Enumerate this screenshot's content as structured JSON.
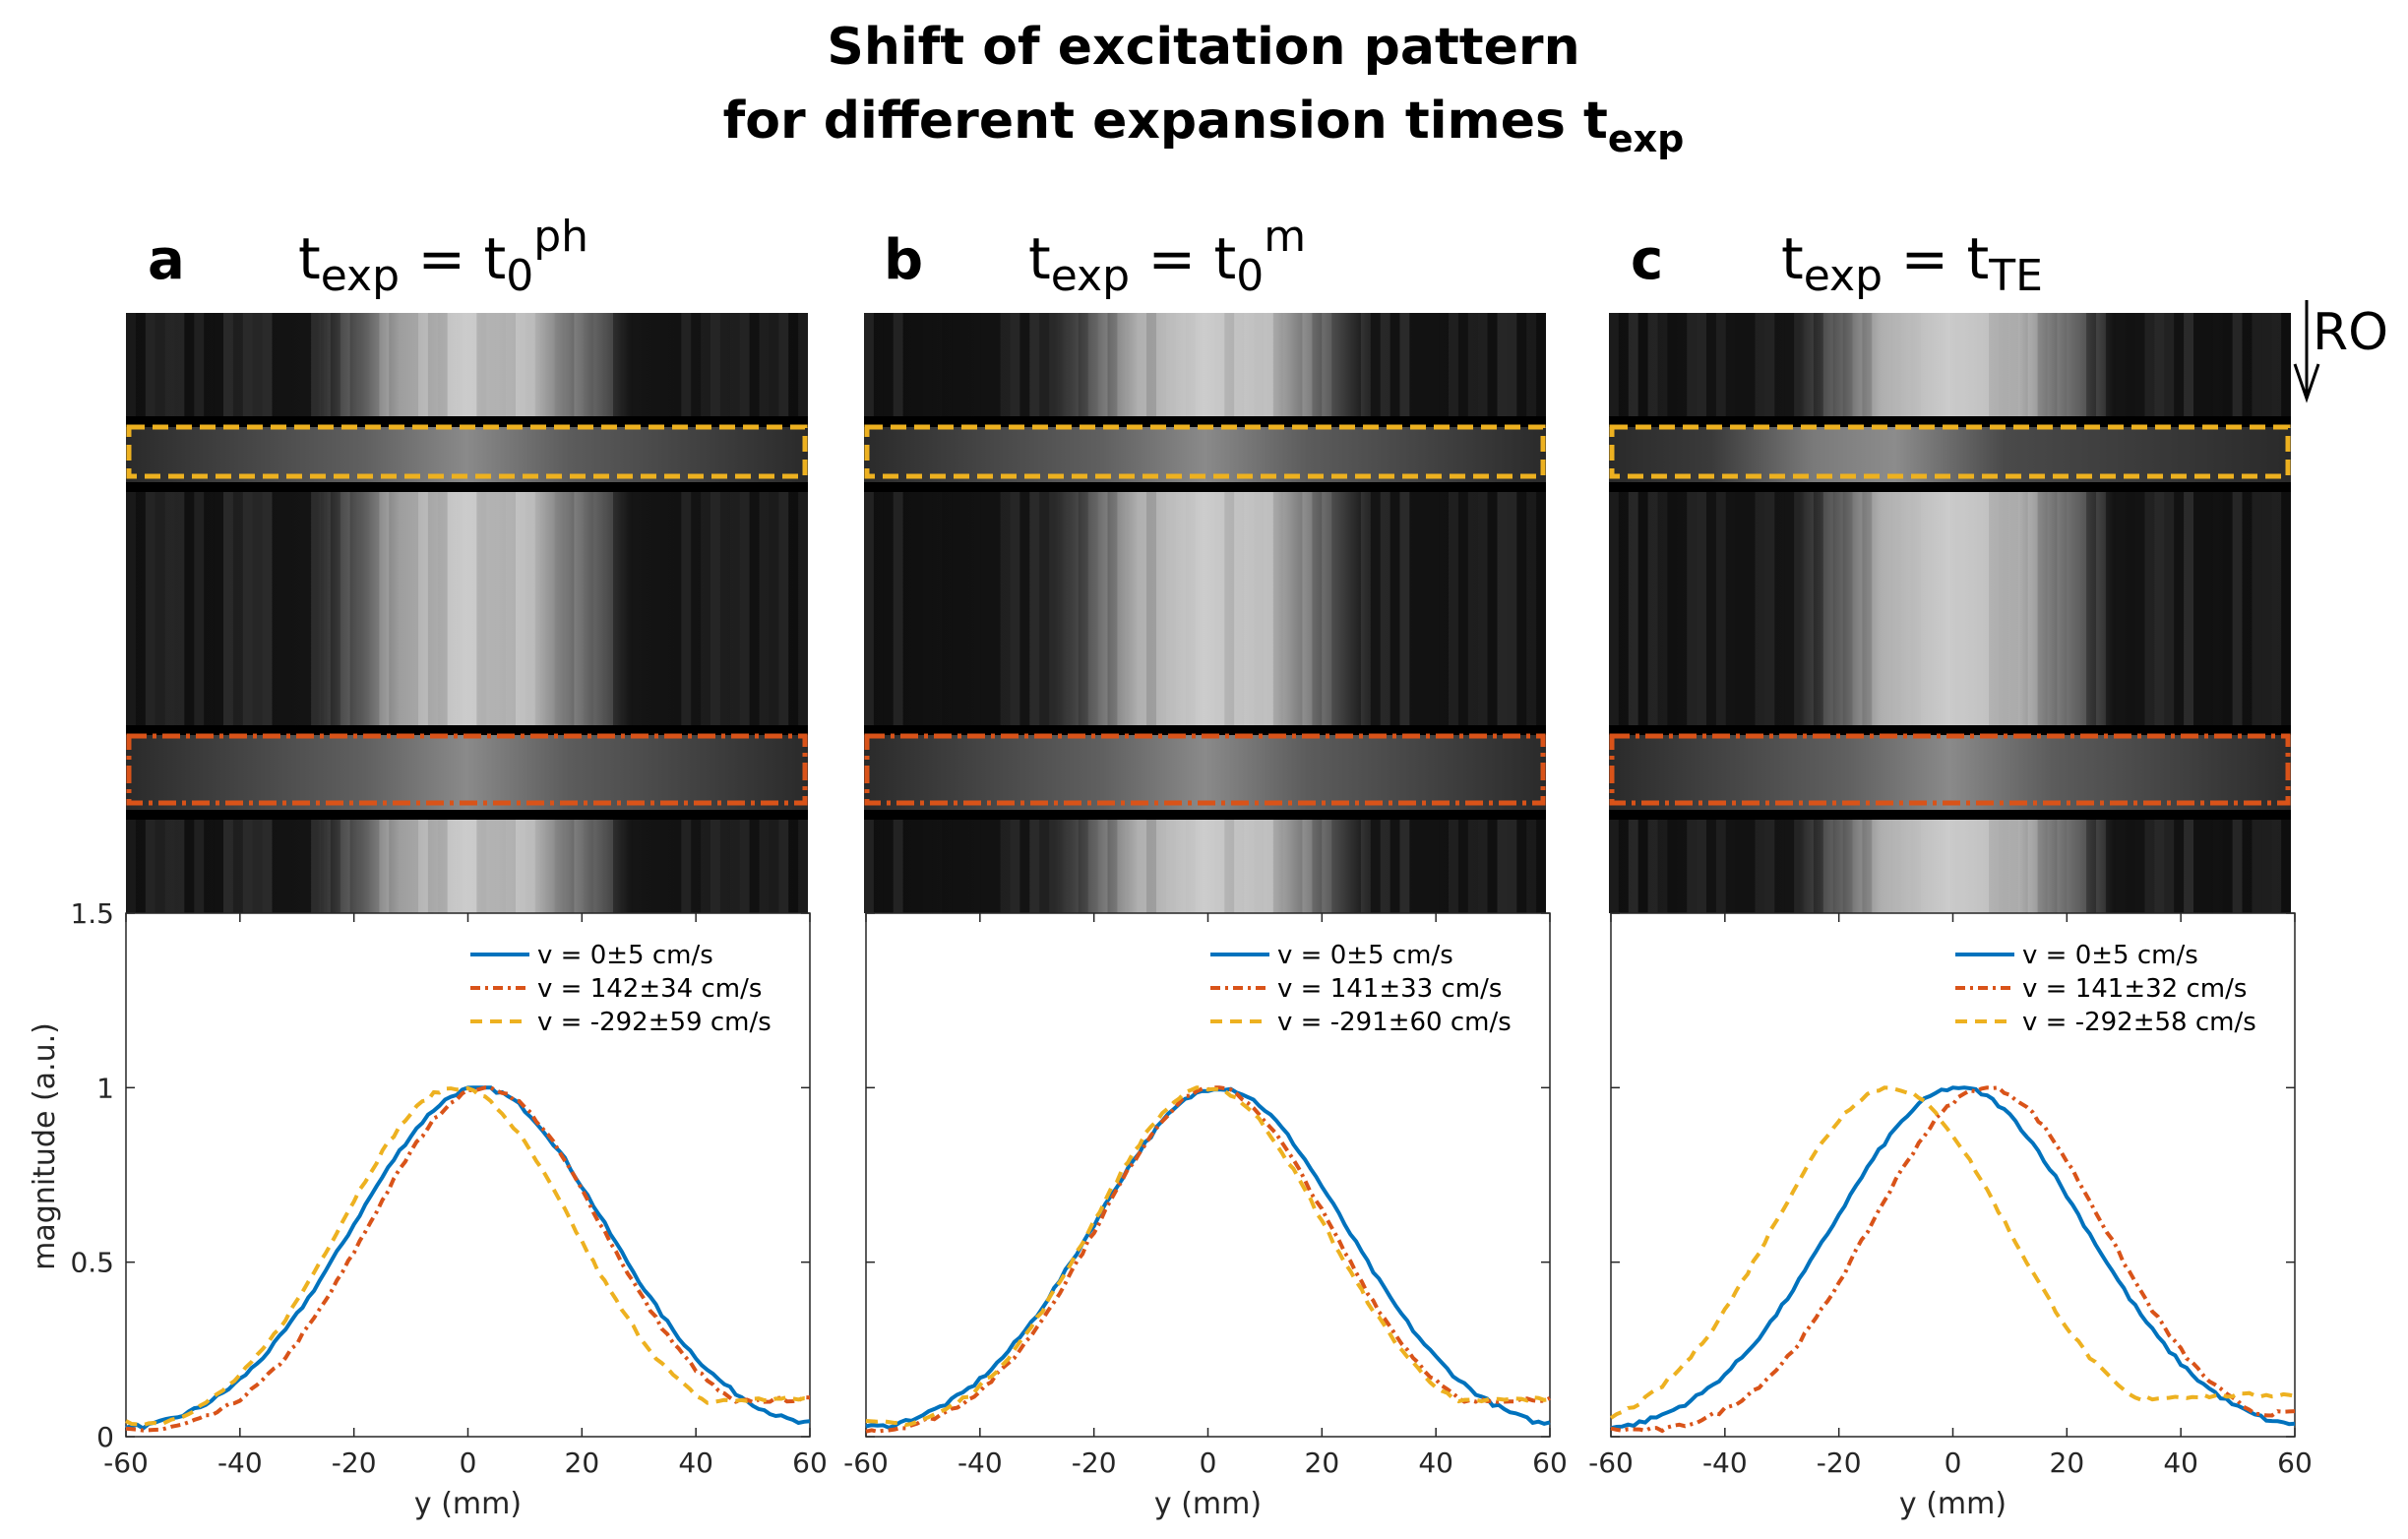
{
  "figure": {
    "title_line1": "Shift of excitation pattern",
    "title_line2": "for different expansion times t",
    "title_sub": "exp",
    "ro_label": "RO",
    "ylabel": "magnitude (a.u.)",
    "xlabel": "y (mm)"
  },
  "colors": {
    "blue": "#0072BD",
    "red": "#D95319",
    "yellow": "#EDB120",
    "axis": "#262626"
  },
  "panels": [
    {
      "letter": "a",
      "header": {
        "t": "t",
        "exp": "exp",
        "eq": " = t",
        "sub": "0",
        "sup": "ph"
      }
    },
    {
      "letter": "b",
      "header": {
        "t": "t",
        "exp": "exp",
        "eq": " = t",
        "sub": "0",
        "sup": "m"
      }
    },
    {
      "letter": "c",
      "header": {
        "t": "t",
        "exp": "exp",
        "eq": " = t",
        "sub": "TE",
        "sup": ""
      }
    }
  ],
  "chart_data": [
    {
      "type": "line",
      "panel": "a",
      "xlabel": "y (mm)",
      "ylabel": "magnitude (a.u.)",
      "xlim": [
        -60,
        60
      ],
      "ylim": [
        0,
        1.5
      ],
      "xticks": [
        -60,
        -40,
        -20,
        0,
        20,
        40,
        60
      ],
      "yticks": [
        0,
        0.5,
        1,
        1.5
      ],
      "ytick_labels": [
        "0",
        "0.5",
        "1",
        "1.5"
      ],
      "series": [
        {
          "name": "v = 0±5 cm/s",
          "color": "#0072BD",
          "style": "solid",
          "center": 2,
          "width": 52,
          "base": 0.03,
          "tail_right": 0.04
        },
        {
          "name": "v = 142±34 cm/s",
          "color": "#D95319",
          "style": "dashdot",
          "center": 3,
          "width": 48,
          "base": 0.02,
          "tail_right": 0.11
        },
        {
          "name": "v = -292±59 cm/s",
          "color": "#EDB120",
          "style": "dashed",
          "center": -2,
          "width": 48,
          "base": 0.04,
          "tail_right": 0.11
        }
      ]
    },
    {
      "type": "line",
      "panel": "b",
      "xlabel": "y (mm)",
      "ylabel": "",
      "xlim": [
        -60,
        60
      ],
      "ylim": [
        0,
        1.5
      ],
      "xticks": [
        -60,
        -40,
        -20,
        0,
        20,
        40,
        60
      ],
      "series": [
        {
          "name": "v = 0±5 cm/s",
          "color": "#0072BD",
          "style": "solid",
          "center": 2,
          "width": 52,
          "base": 0.03,
          "tail_right": 0.04
        },
        {
          "name": "v = 141±33 cm/s",
          "color": "#D95319",
          "style": "dashdot",
          "center": 1,
          "width": 48,
          "base": 0.02,
          "tail_right": 0.11
        },
        {
          "name": "v = -291±60 cm/s",
          "color": "#EDB120",
          "style": "dashed",
          "center": 0,
          "width": 48,
          "base": 0.04,
          "tail_right": 0.11
        }
      ]
    },
    {
      "type": "line",
      "panel": "c",
      "xlabel": "y (mm)",
      "ylabel": "",
      "xlim": [
        -60,
        60
      ],
      "ylim": [
        0,
        1.5
      ],
      "xticks": [
        -60,
        -40,
        -20,
        0,
        20,
        40,
        60
      ],
      "series": [
        {
          "name": "v = 0±5 cm/s",
          "color": "#0072BD",
          "style": "solid",
          "center": 1,
          "width": 52,
          "base": 0.03,
          "tail_right": 0.04
        },
        {
          "name": "v = 141±32 cm/s",
          "color": "#D95319",
          "style": "dashdot",
          "center": 6,
          "width": 48,
          "base": 0.02,
          "tail_right": 0.07
        },
        {
          "name": "v = -292±58 cm/s",
          "color": "#EDB120",
          "style": "dashed",
          "center": -11,
          "width": 48,
          "base": 0.04,
          "tail_right": 0.12
        }
      ]
    }
  ]
}
